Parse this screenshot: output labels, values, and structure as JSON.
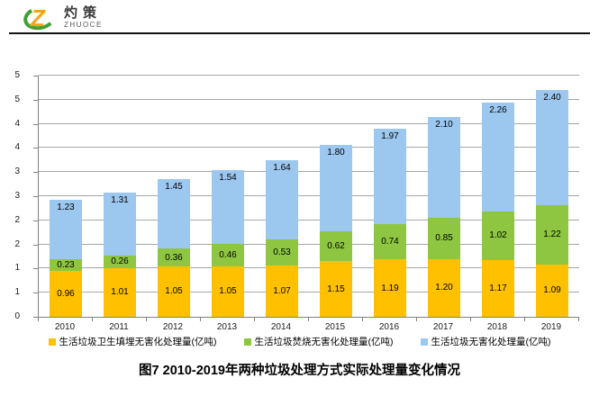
{
  "header": {
    "logo_title": "灼策",
    "logo_subtitle": "ZHUOCE"
  },
  "colors": {
    "landfill": "#FFC000",
    "incineration": "#8EC641",
    "total": "#9CC7EF",
    "gridline": "#A6A6A6",
    "axis": "#808080",
    "logo_orange": "#F7A21B",
    "logo_green": "#3FA037"
  },
  "chart_data": {
    "type": "bar",
    "stacked": true,
    "title": "图7  2010-2019年两种垃圾处理方式实际处理量变化情况",
    "categories": [
      "2010",
      "2011",
      "2012",
      "2013",
      "2014",
      "2015",
      "2016",
      "2017",
      "2018",
      "2019"
    ],
    "series": [
      {
        "name": "生活垃圾卫生填埋无害化处理量(亿吨)",
        "color_key": "landfill",
        "values": [
          0.96,
          1.01,
          1.05,
          1.05,
          1.07,
          1.15,
          1.19,
          1.2,
          1.17,
          1.09
        ]
      },
      {
        "name": "生活垃圾焚烧无害化处理量(亿吨)",
        "color_key": "incineration",
        "values": [
          0.23,
          0.26,
          0.36,
          0.46,
          0.53,
          0.62,
          0.74,
          0.85,
          1.02,
          1.22
        ]
      },
      {
        "name": "生活垃圾无害化处理量(亿吨)",
        "color_key": "total",
        "values": [
          1.23,
          1.31,
          1.45,
          1.54,
          1.64,
          1.8,
          1.97,
          2.1,
          2.26,
          2.4
        ]
      }
    ],
    "ylim": [
      0,
      5
    ],
    "ytick_step": 0.5,
    "ytick_labels": [
      "0",
      "1",
      "1",
      "2",
      "2",
      "3",
      "3",
      "4",
      "4",
      "5",
      "5"
    ],
    "grid": true,
    "legend_position": "bottom",
    "value_label_decimals": 2
  }
}
